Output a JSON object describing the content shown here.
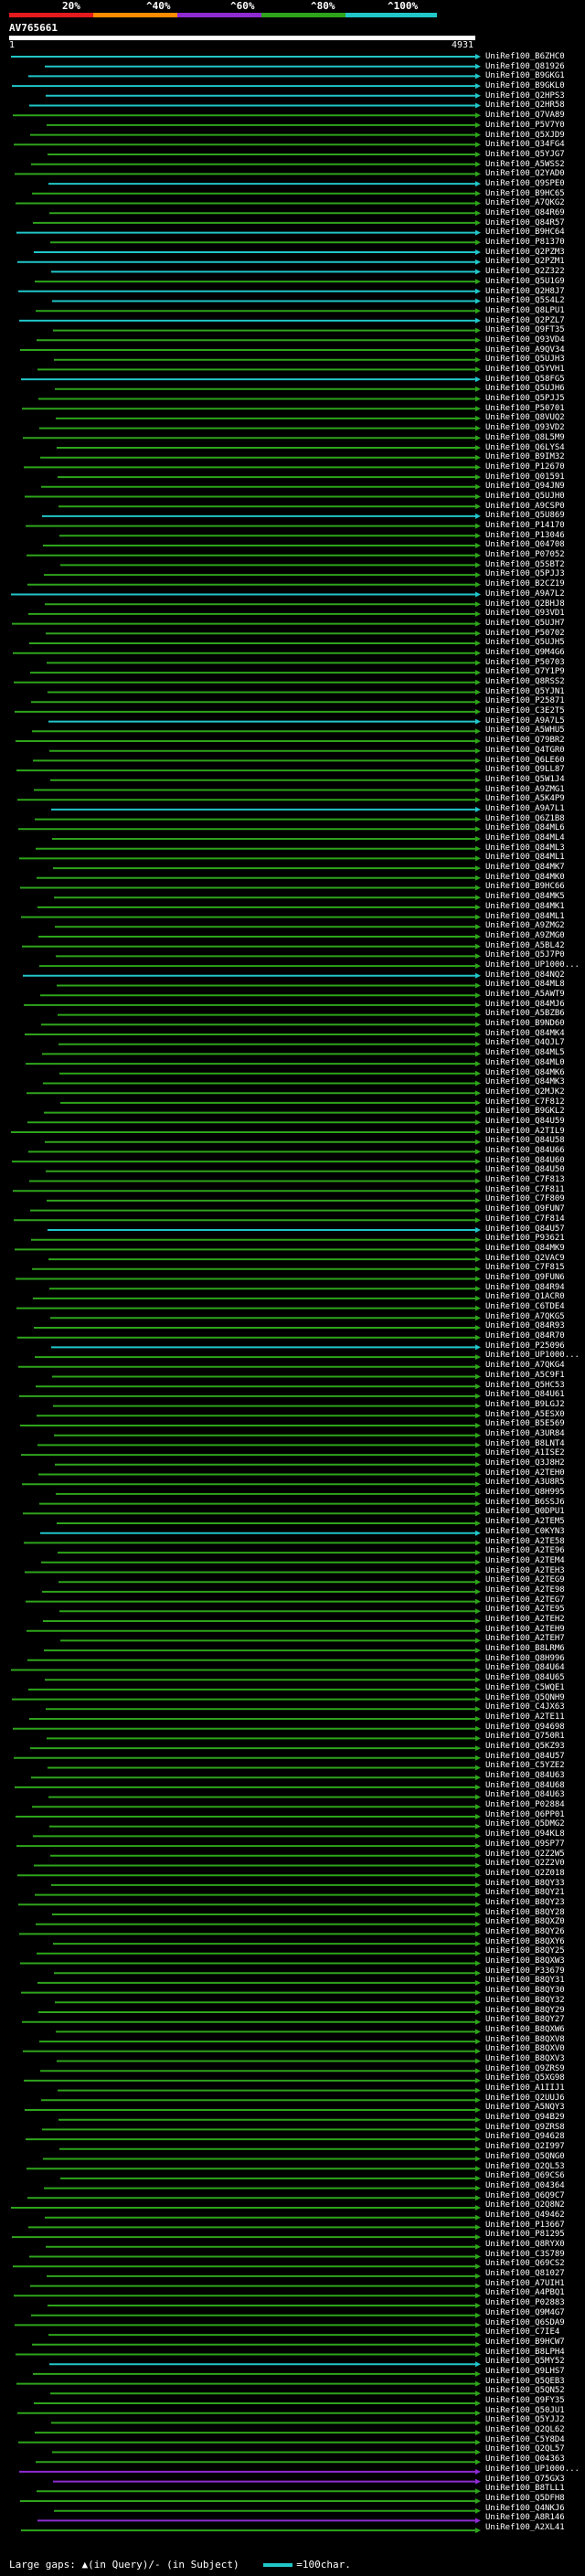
{
  "legend": {
    "labels": [
      "20%",
      "^40%",
      "^60%",
      "^80%",
      "^100%"
    ],
    "colors": [
      "#e41a1c",
      "#ff8c00",
      "#8e2bd1",
      "#2ea41b",
      "#21c6c9"
    ]
  },
  "query": {
    "name": "AV765661",
    "start": "1",
    "end": "4931"
  },
  "hits": [
    {
      "id": "UniRef100_B6ZHC0",
      "color": "#21c6c9"
    },
    {
      "id": "UniRef100_Q81926",
      "color": "#21c6c9"
    },
    {
      "id": "UniRef100_B9GKG1",
      "color": "#21c6c9"
    },
    {
      "id": "UniRef100_B9GKL0",
      "color": "#21c6c9"
    },
    {
      "id": "UniRef100_Q2HPS3",
      "color": "#21c6c9"
    },
    {
      "id": "UniRef100_Q2HR58",
      "color": "#21c6c9"
    },
    {
      "id": "UniRef100_Q7VA89",
      "color": "#2ea41b"
    },
    {
      "id": "UniRef100_P5V7Y0",
      "color": "#2ea41b"
    },
    {
      "id": "UniRef100_Q5XJD9",
      "color": "#2ea41b"
    },
    {
      "id": "UniRef100_Q34FG4",
      "color": "#2ea41b"
    },
    {
      "id": "UniRef100_Q5YJG7",
      "color": "#2ea41b"
    },
    {
      "id": "UniRef100_A5WSS2",
      "color": "#2ea41b"
    },
    {
      "id": "UniRef100_Q2YAD0",
      "color": "#2ea41b"
    },
    {
      "id": "UniRef100_Q9SPE0",
      "color": "#21c6c9"
    },
    {
      "id": "UniRef100_B9HC65",
      "color": "#2ea41b"
    },
    {
      "id": "UniRef100_A7QKG2",
      "color": "#2ea41b"
    },
    {
      "id": "UniRef100_Q84R69",
      "color": "#2ea41b"
    },
    {
      "id": "UniRef100_Q84R57",
      "color": "#2ea41b"
    },
    {
      "id": "UniRef100_B9HC64",
      "color": "#21c6c9"
    },
    {
      "id": "UniRef100_P81370",
      "color": "#2ea41b"
    },
    {
      "id": "UniRef100_Q2PZM3",
      "color": "#21c6c9"
    },
    {
      "id": "UniRef100_Q2PZM1",
      "color": "#21c6c9"
    },
    {
      "id": "UniRef100_Q2Z322",
      "color": "#21c6c9"
    },
    {
      "id": "UniRef100_Q5U1G9",
      "color": "#2ea41b"
    },
    {
      "id": "UniRef100_Q2H8J7",
      "color": "#21c6c9"
    },
    {
      "id": "UniRef100_Q5S4L2",
      "color": "#21c6c9"
    },
    {
      "id": "UniRef100_Q8LPU1",
      "color": "#2ea41b"
    },
    {
      "id": "UniRef100_Q2PZL7",
      "color": "#21c6c9"
    },
    {
      "id": "UniRef100_Q9FT35",
      "color": "#2ea41b"
    },
    {
      "id": "UniRef100_Q93VD4",
      "color": "#2ea41b"
    },
    {
      "id": "UniRef100_A9QV34",
      "color": "#2ea41b"
    },
    {
      "id": "UniRef100_Q5UJH3",
      "color": "#2ea41b"
    },
    {
      "id": "UniRef100_Q5YVH1",
      "color": "#2ea41b"
    },
    {
      "id": "UniRef100_Q58FG5",
      "color": "#21c6c9"
    },
    {
      "id": "UniRef100_Q5UJH6",
      "color": "#2ea41b"
    },
    {
      "id": "UniRef100_Q5PJJ5",
      "color": "#2ea41b"
    },
    {
      "id": "UniRef100_P50701",
      "color": "#2ea41b"
    },
    {
      "id": "UniRef100_Q8VUQ2",
      "color": "#2ea41b"
    },
    {
      "id": "UniRef100_Q93VD2",
      "color": "#2ea41b"
    },
    {
      "id": "UniRef100_Q8L5M9",
      "color": "#2ea41b"
    },
    {
      "id": "UniRef100_Q6LYS4",
      "color": "#2ea41b"
    },
    {
      "id": "UniRef100_B9IM32",
      "color": "#2ea41b"
    },
    {
      "id": "UniRef100_P12670",
      "color": "#2ea41b"
    },
    {
      "id": "UniRef100_Q01591",
      "color": "#2ea41b"
    },
    {
      "id": "UniRef100_Q94JN9",
      "color": "#2ea41b"
    },
    {
      "id": "UniRef100_Q5UJH0",
      "color": "#2ea41b"
    },
    {
      "id": "UniRef100_A9CSP0",
      "color": "#2ea41b"
    },
    {
      "id": "UniRef100_Q5U869",
      "color": "#21c6c9"
    },
    {
      "id": "UniRef100_P14170",
      "color": "#2ea41b"
    },
    {
      "id": "UniRef100_P13046",
      "color": "#2ea41b"
    },
    {
      "id": "UniRef100_Q04708",
      "color": "#2ea41b"
    },
    {
      "id": "UniRef100_P07052",
      "color": "#2ea41b"
    },
    {
      "id": "UniRef100_Q5SBT2",
      "color": "#2ea41b"
    },
    {
      "id": "UniRef100_Q5PJJ3",
      "color": "#2ea41b"
    },
    {
      "id": "UniRef100_B2CZ19",
      "color": "#2ea41b"
    },
    {
      "id": "UniRef100_A9A7L2",
      "color": "#21c6c9"
    },
    {
      "id": "UniRef100_Q2BHJ8",
      "color": "#2ea41b"
    },
    {
      "id": "UniRef100_Q93VD1",
      "color": "#2ea41b"
    },
    {
      "id": "UniRef100_Q5UJH7",
      "color": "#2ea41b"
    },
    {
      "id": "UniRef100_P50702",
      "color": "#2ea41b"
    },
    {
      "id": "UniRef100_Q5UJH5",
      "color": "#2ea41b"
    },
    {
      "id": "UniRef100_Q9M4G6",
      "color": "#2ea41b"
    },
    {
      "id": "UniRef100_P50703",
      "color": "#2ea41b"
    },
    {
      "id": "UniRef100_Q7Y1P9",
      "color": "#2ea41b"
    },
    {
      "id": "UniRef100_Q8RSS2",
      "color": "#2ea41b"
    },
    {
      "id": "UniRef100_Q5YJN1",
      "color": "#2ea41b"
    },
    {
      "id": "UniRef100_P25871",
      "color": "#2ea41b"
    },
    {
      "id": "UniRef100_C3E2T5",
      "color": "#2ea41b"
    },
    {
      "id": "UniRef100_A9A7L5",
      "color": "#21c6c9"
    },
    {
      "id": "UniRef100_A5WHU5",
      "color": "#2ea41b"
    },
    {
      "id": "UniRef100_Q79BR2",
      "color": "#2ea41b"
    },
    {
      "id": "UniRef100_Q4TGR0",
      "color": "#2ea41b"
    },
    {
      "id": "UniRef100_Q6LE60",
      "color": "#2ea41b"
    },
    {
      "id": "UniRef100_Q9LL87",
      "color": "#2ea41b"
    },
    {
      "id": "UniRef100_Q5W1J4",
      "color": "#2ea41b"
    },
    {
      "id": "UniRef100_A9ZMG1",
      "color": "#2ea41b"
    },
    {
      "id": "UniRef100_A5K4P9",
      "color": "#2ea41b"
    },
    {
      "id": "UniRef100_A9A7L1",
      "color": "#21c6c9"
    },
    {
      "id": "UniRef100_Q6Z1B8",
      "color": "#2ea41b"
    },
    {
      "id": "UniRef100_Q84ML6",
      "color": "#2ea41b"
    },
    {
      "id": "UniRef100_Q84ML4",
      "color": "#2ea41b"
    },
    {
      "id": "UniRef100_Q84ML3",
      "color": "#2ea41b"
    },
    {
      "id": "UniRef100_Q84ML1",
      "color": "#2ea41b"
    },
    {
      "id": "UniRef100_Q84MK7",
      "color": "#2ea41b"
    },
    {
      "id": "UniRef100_Q84MK0",
      "color": "#2ea41b"
    },
    {
      "id": "UniRef100_B9HC66",
      "color": "#2ea41b"
    },
    {
      "id": "UniRef100_Q84MK5",
      "color": "#2ea41b"
    },
    {
      "id": "UniRef100_Q84MK1",
      "color": "#2ea41b"
    },
    {
      "id": "UniRef100_Q84ML1",
      "color": "#2ea41b"
    },
    {
      "id": "UniRef100_A9ZMG2",
      "color": "#2ea41b"
    },
    {
      "id": "UniRef100_A9ZMG0",
      "color": "#2ea41b"
    },
    {
      "id": "UniRef100_A5BL42",
      "color": "#2ea41b"
    },
    {
      "id": "UniRef100_Q5J7P0",
      "color": "#2ea41b"
    },
    {
      "id": "UniRef100_UP1000...",
      "color": "#2ea41b"
    },
    {
      "id": "UniRef100_Q84NQ2",
      "color": "#21c6c9"
    },
    {
      "id": "UniRef100_Q84ML8",
      "color": "#2ea41b"
    },
    {
      "id": "UniRef100_A5AWT9",
      "color": "#2ea41b"
    },
    {
      "id": "UniRef100_Q84MJ6",
      "color": "#2ea41b"
    },
    {
      "id": "UniRef100_A5BZB6",
      "color": "#2ea41b"
    },
    {
      "id": "UniRef100_B9ND60",
      "color": "#2ea41b"
    },
    {
      "id": "UniRef100_Q84MK4",
      "color": "#2ea41b"
    },
    {
      "id": "UniRef100_Q4QJL7",
      "color": "#2ea41b"
    },
    {
      "id": "UniRef100_Q84ML5",
      "color": "#2ea41b"
    },
    {
      "id": "UniRef100_Q84ML0",
      "color": "#2ea41b"
    },
    {
      "id": "UniRef100_Q84MK6",
      "color": "#2ea41b"
    },
    {
      "id": "UniRef100_Q84MK3",
      "color": "#2ea41b"
    },
    {
      "id": "UniRef100_Q2MJK2",
      "color": "#2ea41b"
    },
    {
      "id": "UniRef100_C7F812",
      "color": "#2ea41b"
    },
    {
      "id": "UniRef100_B9GKL2",
      "color": "#2ea41b"
    },
    {
      "id": "UniRef100_Q84U59",
      "color": "#2ea41b"
    },
    {
      "id": "UniRef100_A2TIL9",
      "color": "#2ea41b"
    },
    {
      "id": "UniRef100_Q84U58",
      "color": "#2ea41b"
    },
    {
      "id": "UniRef100_Q84U66",
      "color": "#2ea41b"
    },
    {
      "id": "UniRef100_Q84U60",
      "color": "#2ea41b"
    },
    {
      "id": "UniRef100_Q84U50",
      "color": "#2ea41b"
    },
    {
      "id": "UniRef100_C7F813",
      "color": "#2ea41b"
    },
    {
      "id": "UniRef100_C7F811",
      "color": "#2ea41b"
    },
    {
      "id": "UniRef100_C7F809",
      "color": "#2ea41b"
    },
    {
      "id": "UniRef100_Q9FUN7",
      "color": "#2ea41b"
    },
    {
      "id": "UniRef100_C7F814",
      "color": "#2ea41b"
    },
    {
      "id": "UniRef100_Q84U57",
      "color": "#21c6c9"
    },
    {
      "id": "UniRef100_P93621",
      "color": "#2ea41b"
    },
    {
      "id": "UniRef100_Q84MK9",
      "color": "#2ea41b"
    },
    {
      "id": "UniRef100_Q2VAC9",
      "color": "#2ea41b"
    },
    {
      "id": "UniRef100_C7F815",
      "color": "#2ea41b"
    },
    {
      "id": "UniRef100_Q9FUN6",
      "color": "#2ea41b"
    },
    {
      "id": "UniRef100_Q84R94",
      "color": "#2ea41b"
    },
    {
      "id": "UniRef100_Q1ACR0",
      "color": "#2ea41b"
    },
    {
      "id": "UniRef100_C6TDE4",
      "color": "#2ea41b"
    },
    {
      "id": "UniRef100_A7QKG5",
      "color": "#2ea41b"
    },
    {
      "id": "UniRef100_Q84R93",
      "color": "#2ea41b"
    },
    {
      "id": "UniRef100_Q84R70",
      "color": "#2ea41b"
    },
    {
      "id": "UniRef100_P25096",
      "color": "#21c6c9"
    },
    {
      "id": "UniRef100_UP1000...",
      "color": "#2ea41b"
    },
    {
      "id": "UniRef100_A7QKG4",
      "color": "#2ea41b"
    },
    {
      "id": "UniRef100_A5C9F1",
      "color": "#2ea41b"
    },
    {
      "id": "UniRef100_Q5HC53",
      "color": "#2ea41b"
    },
    {
      "id": "UniRef100_Q84U61",
      "color": "#2ea41b"
    },
    {
      "id": "UniRef100_B9LGJ2",
      "color": "#2ea41b"
    },
    {
      "id": "UniRef100_A5ESX0",
      "color": "#2ea41b"
    },
    {
      "id": "UniRef100_B5E569",
      "color": "#2ea41b"
    },
    {
      "id": "UniRef100_A3UR84",
      "color": "#2ea41b"
    },
    {
      "id": "UniRef100_B8LNT4",
      "color": "#2ea41b"
    },
    {
      "id": "UniRef100_A1ISE2",
      "color": "#2ea41b"
    },
    {
      "id": "UniRef100_Q3J8H2",
      "color": "#2ea41b"
    },
    {
      "id": "UniRef100_A2TEH0",
      "color": "#2ea41b"
    },
    {
      "id": "UniRef100_A3U8R5",
      "color": "#2ea41b"
    },
    {
      "id": "UniRef100_Q8H995",
      "color": "#2ea41b"
    },
    {
      "id": "UniRef100_B6SSJ6",
      "color": "#2ea41b"
    },
    {
      "id": "UniRef100_Q0DPU1",
      "color": "#2ea41b"
    },
    {
      "id": "UniRef100_A2TEM5",
      "color": "#2ea41b"
    },
    {
      "id": "UniRef100_C0KYN3",
      "color": "#21c6c9"
    },
    {
      "id": "UniRef100_A2TE58",
      "color": "#2ea41b"
    },
    {
      "id": "UniRef100_A2TE96",
      "color": "#2ea41b"
    },
    {
      "id": "UniRef100_A2TEM4",
      "color": "#2ea41b"
    },
    {
      "id": "UniRef100_A2TEH3",
      "color": "#2ea41b"
    },
    {
      "id": "UniRef100_A2TEG9",
      "color": "#2ea41b"
    },
    {
      "id": "UniRef100_A2TE98",
      "color": "#2ea41b"
    },
    {
      "id": "UniRef100_A2TEG7",
      "color": "#2ea41b"
    },
    {
      "id": "UniRef100_A2TE95",
      "color": "#2ea41b"
    },
    {
      "id": "UniRef100_A2TEH2",
      "color": "#2ea41b"
    },
    {
      "id": "UniRef100_A2TEH9",
      "color": "#2ea41b"
    },
    {
      "id": "UniRef100_A2TEH7",
      "color": "#2ea41b"
    },
    {
      "id": "UniRef100_B8LRM6",
      "color": "#2ea41b"
    },
    {
      "id": "UniRef100_Q8H996",
      "color": "#2ea41b"
    },
    {
      "id": "UniRef100_Q84U64",
      "color": "#2ea41b"
    },
    {
      "id": "UniRef100_Q84U65",
      "color": "#2ea41b"
    },
    {
      "id": "UniRef100_C5WQE1",
      "color": "#2ea41b"
    },
    {
      "id": "UniRef100_Q5QNH9",
      "color": "#2ea41b"
    },
    {
      "id": "UniRef100_C4JX63",
      "color": "#2ea41b"
    },
    {
      "id": "UniRef100_A2TE11",
      "color": "#2ea41b"
    },
    {
      "id": "UniRef100_Q94698",
      "color": "#2ea41b"
    },
    {
      "id": "UniRef100_Q750R1",
      "color": "#2ea41b"
    },
    {
      "id": "UniRef100_Q5KZ93",
      "color": "#2ea41b"
    },
    {
      "id": "UniRef100_Q84U57",
      "color": "#2ea41b"
    },
    {
      "id": "UniRef100_C5YZE2",
      "color": "#2ea41b"
    },
    {
      "id": "UniRef100_Q84U63",
      "color": "#2ea41b"
    },
    {
      "id": "UniRef100_Q84U68",
      "color": "#2ea41b"
    },
    {
      "id": "UniRef100_Q84U63",
      "color": "#2ea41b"
    },
    {
      "id": "UniRef100_P02884",
      "color": "#2ea41b"
    },
    {
      "id": "UniRef100_Q6PP01",
      "color": "#2ea41b"
    },
    {
      "id": "UniRef100_Q5DMG2",
      "color": "#2ea41b"
    },
    {
      "id": "UniRef100_Q94KL8",
      "color": "#2ea41b"
    },
    {
      "id": "UniRef100_Q9SP77",
      "color": "#2ea41b"
    },
    {
      "id": "UniRef100_Q2Z2W5",
      "color": "#2ea41b"
    },
    {
      "id": "UniRef100_Q2Z2V0",
      "color": "#2ea41b"
    },
    {
      "id": "UniRef100_Q2Z018",
      "color": "#2ea41b"
    },
    {
      "id": "UniRef100_B8QY33",
      "color": "#2ea41b"
    },
    {
      "id": "UniRef100_B8QY21",
      "color": "#2ea41b"
    },
    {
      "id": "UniRef100_B8QY23",
      "color": "#2ea41b"
    },
    {
      "id": "UniRef100_B8QY28",
      "color": "#2ea41b"
    },
    {
      "id": "UniRef100_B8QXZ0",
      "color": "#2ea41b"
    },
    {
      "id": "UniRef100_B8QY26",
      "color": "#2ea41b"
    },
    {
      "id": "UniRef100_B8QXY6",
      "color": "#2ea41b"
    },
    {
      "id": "UniRef100_B8QY25",
      "color": "#2ea41b"
    },
    {
      "id": "UniRef100_B8QXW3",
      "color": "#2ea41b"
    },
    {
      "id": "UniRef100_P33679",
      "color": "#2ea41b"
    },
    {
      "id": "UniRef100_B8QY31",
      "color": "#2ea41b"
    },
    {
      "id": "UniRef100_B8QY30",
      "color": "#2ea41b"
    },
    {
      "id": "UniRef100_B8QY32",
      "color": "#2ea41b"
    },
    {
      "id": "UniRef100_B8QY29",
      "color": "#2ea41b"
    },
    {
      "id": "UniRef100_B8QY27",
      "color": "#2ea41b"
    },
    {
      "id": "UniRef100_B8QXW6",
      "color": "#2ea41b"
    },
    {
      "id": "UniRef100_B8QXV8",
      "color": "#2ea41b"
    },
    {
      "id": "UniRef100_B8QXV0",
      "color": "#2ea41b"
    },
    {
      "id": "UniRef100_B8QXV3",
      "color": "#2ea41b"
    },
    {
      "id": "UniRef100_Q9ZRS9",
      "color": "#2ea41b"
    },
    {
      "id": "UniRef100_Q5XG98",
      "color": "#2ea41b"
    },
    {
      "id": "UniRef100_A1IIJ1",
      "color": "#2ea41b"
    },
    {
      "id": "UniRef100_Q2UUJ6",
      "color": "#2ea41b"
    },
    {
      "id": "UniRef100_A5NQY3",
      "color": "#2ea41b"
    },
    {
      "id": "UniRef100_Q94B29",
      "color": "#2ea41b"
    },
    {
      "id": "UniRef100_Q9ZRS8",
      "color": "#2ea41b"
    },
    {
      "id": "UniRef100_Q94628",
      "color": "#2ea41b"
    },
    {
      "id": "UniRef100_Q2I997",
      "color": "#2ea41b"
    },
    {
      "id": "UniRef100_Q5QNG0",
      "color": "#2ea41b"
    },
    {
      "id": "UniRef100_Q2QL53",
      "color": "#2ea41b"
    },
    {
      "id": "UniRef100_Q69CS6",
      "color": "#2ea41b"
    },
    {
      "id": "UniRef100_Q04364",
      "color": "#2ea41b"
    },
    {
      "id": "UniRef100_Q6Q9C7",
      "color": "#2ea41b"
    },
    {
      "id": "UniRef100_Q2Q8N2",
      "color": "#2ea41b"
    },
    {
      "id": "UniRef100_Q49462",
      "color": "#2ea41b"
    },
    {
      "id": "UniRef100_P13667",
      "color": "#2ea41b"
    },
    {
      "id": "UniRef100_P81295",
      "color": "#2ea41b"
    },
    {
      "id": "UniRef100_Q8RYX0",
      "color": "#2ea41b"
    },
    {
      "id": "UniRef100_C3S789",
      "color": "#2ea41b"
    },
    {
      "id": "UniRef100_Q69CS2",
      "color": "#2ea41b"
    },
    {
      "id": "UniRef100_Q81027",
      "color": "#2ea41b"
    },
    {
      "id": "UniRef100_A7UIH1",
      "color": "#2ea41b"
    },
    {
      "id": "UniRef100_A4PBQ1",
      "color": "#2ea41b"
    },
    {
      "id": "UniRef100_P02883",
      "color": "#2ea41b"
    },
    {
      "id": "UniRef100_Q9M4G7",
      "color": "#2ea41b"
    },
    {
      "id": "UniRef100_Q6SDA9",
      "color": "#2ea41b"
    },
    {
      "id": "UniRef100_C7IE4",
      "color": "#2ea41b"
    },
    {
      "id": "UniRef100_B9HCW7",
      "color": "#2ea41b"
    },
    {
      "id": "UniRef100_B8LPH4",
      "color": "#2ea41b"
    },
    {
      "id": "UniRef100_Q5MY52",
      "color": "#21c6c9"
    },
    {
      "id": "UniRef100_Q9LHS7",
      "color": "#2ea41b"
    },
    {
      "id": "UniRef100_Q5QEB3",
      "color": "#2ea41b"
    },
    {
      "id": "UniRef100_Q5QN52",
      "color": "#2ea41b"
    },
    {
      "id": "UniRef100_Q9FY35",
      "color": "#2ea41b"
    },
    {
      "id": "UniRef100_Q50JU1",
      "color": "#2ea41b"
    },
    {
      "id": "UniRef100_Q5YJJ2",
      "color": "#2ea41b"
    },
    {
      "id": "UniRef100_Q2QL62",
      "color": "#2ea41b"
    },
    {
      "id": "UniRef100_C5Y8D4",
      "color": "#2ea41b"
    },
    {
      "id": "UniRef100_Q2QL57",
      "color": "#2ea41b"
    },
    {
      "id": "UniRef100_Q04363",
      "color": "#2ea41b"
    },
    {
      "id": "UniRef100_UP1000...",
      "color": "#8e2bd1"
    },
    {
      "id": "UniRef100_Q75GX3",
      "color": "#8e2bd1"
    },
    {
      "id": "UniRef100_B8TLL1",
      "color": "#2ea41b"
    },
    {
      "id": "UniRef100_Q5DFH8",
      "color": "#2ea41b"
    },
    {
      "id": "UniRef100_Q4NKJ6",
      "color": "#2ea41b"
    },
    {
      "id": "UniRef100_A8R146",
      "color": "#8e2bd1"
    },
    {
      "id": "UniRef100_A2XL41",
      "color": "#2ea41b"
    }
  ],
  "footer": {
    "gaps_label": "Large gaps: ▲(in Query)/- (in Subject)",
    "scale_label": "=100char."
  }
}
